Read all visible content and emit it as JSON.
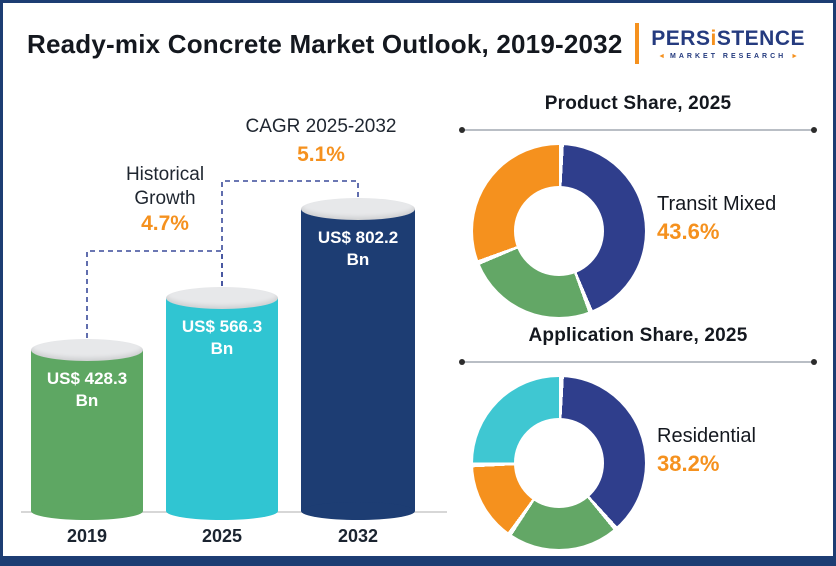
{
  "header": {
    "title": "Ready-mix Concrete Market Outlook, 2019-2032",
    "logo": {
      "name_pre": "PERS",
      "name_i": "i",
      "name_post": "STENCE",
      "arrow_left": "◄",
      "subtitle": "MARKET RESEARCH",
      "arrow_right": "►"
    }
  },
  "colors": {
    "navy": "#1d3d73",
    "donut_blue": "#2f3e8c",
    "green": "#5ea763",
    "cyan": "#30c5d2",
    "orange": "#f5911e"
  },
  "chart_data": [
    {
      "type": "bar",
      "title": "Ready-mix Concrete Market Outlook, 2019-2032",
      "categories": [
        "2019",
        "2025",
        "2032"
      ],
      "values": [
        428.3,
        566.3,
        802.2
      ],
      "value_labels": [
        "US$ 428.3 Bn",
        "US$ 566.3 Bn",
        "US$ 802.2 Bn"
      ],
      "unit": "US$ Bn",
      "bar_colors": [
        "#5ea763",
        "#30c5d2",
        "#1d3d73"
      ],
      "annotations": [
        {
          "label": "Historical Growth",
          "value": "4.7%"
        },
        {
          "label": "CAGR 2025-2032",
          "value": "5.1%"
        }
      ]
    },
    {
      "type": "pie",
      "title": "Product  Share, 2025",
      "callout": {
        "label": "Transit Mixed",
        "value": "43.6%"
      },
      "slices": [
        {
          "name": "Transit Mixed",
          "value": 43.6,
          "color": "#2f3e8c"
        },
        {
          "name": "",
          "value": 25.0,
          "color": "#63a766"
        },
        {
          "name": "",
          "value": 31.4,
          "color": "#f5911e"
        }
      ]
    },
    {
      "type": "pie",
      "title": "Application Share, 2025",
      "callout": {
        "label": "Residential",
        "value": "38.2%"
      },
      "slices": [
        {
          "name": "Residential",
          "value": 38.2,
          "color": "#2f3e8c"
        },
        {
          "name": "",
          "value": 21.0,
          "color": "#63a766"
        },
        {
          "name": "",
          "value": 15.0,
          "color": "#f5911e"
        },
        {
          "name": "",
          "value": 25.8,
          "color": "#3fc7d2"
        }
      ]
    }
  ]
}
